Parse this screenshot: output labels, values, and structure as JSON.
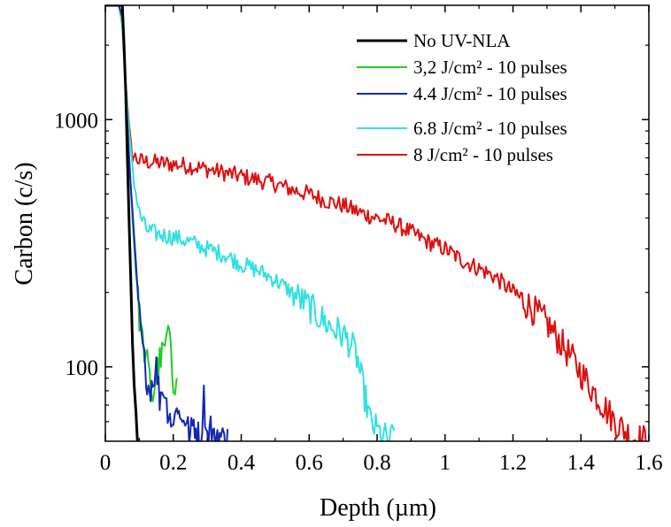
{
  "chart_data": {
    "type": "line",
    "xlabel": "Depth (µm)",
    "ylabel": "Carbon (c/s)",
    "xlim": [
      0,
      1.6
    ],
    "ylim": [
      50,
      2900
    ],
    "yscale": "log",
    "grid": false,
    "legend_position": "top-right",
    "x_ticks": [
      {
        "value": 0,
        "label": "0"
      },
      {
        "value": 0.2,
        "label": "0.2"
      },
      {
        "value": 0.4,
        "label": "0.4"
      },
      {
        "value": 0.6,
        "label": "0.6"
      },
      {
        "value": 0.8,
        "label": "0.8"
      },
      {
        "value": 1.0,
        "label": "1"
      },
      {
        "value": 1.2,
        "label": "1.2"
      },
      {
        "value": 1.4,
        "label": "1.4"
      },
      {
        "value": 1.6,
        "label": "1.6"
      }
    ],
    "y_ticks": [
      {
        "value": 100,
        "label": "100"
      },
      {
        "value": 1000,
        "label": "1000"
      }
    ],
    "series": [
      {
        "name": "No UV-NLA",
        "color": "#000000",
        "x": [
          0.0,
          0.03,
          0.04,
          0.05,
          0.055,
          0.06,
          0.065,
          0.07,
          0.075,
          0.08,
          0.085,
          0.09,
          0.095
        ],
        "y": [
          2900,
          2900,
          2900,
          2900,
          2000,
          1300,
          700,
          380,
          220,
          140,
          95,
          65,
          48
        ]
      },
      {
        "name": "3,2 J/cm² - 10 pulses",
        "color": "#22cc22",
        "x": [
          0.0,
          0.04,
          0.05,
          0.06,
          0.07,
          0.08,
          0.09,
          0.1,
          0.11,
          0.12,
          0.13,
          0.14,
          0.15,
          0.16,
          0.17,
          0.18,
          0.185,
          0.19,
          0.2,
          0.21
        ],
        "y": [
          2900,
          2900,
          2600,
          1300,
          700,
          400,
          250,
          160,
          125,
          110,
          90,
          75,
          95,
          105,
          115,
          125,
          145,
          120,
          85,
          90
        ]
      },
      {
        "name": "4.4 J/cm² - 10 pulses",
        "color": "#1428b4",
        "x": [
          0.0,
          0.04,
          0.05,
          0.06,
          0.07,
          0.08,
          0.09,
          0.1,
          0.11,
          0.12,
          0.13,
          0.14,
          0.15,
          0.16,
          0.17,
          0.18,
          0.19,
          0.2,
          0.21,
          0.22,
          0.23,
          0.24,
          0.25,
          0.26,
          0.27,
          0.28,
          0.29,
          0.3,
          0.31,
          0.32,
          0.33,
          0.34,
          0.35,
          0.36
        ],
        "y": [
          2900,
          2900,
          2600,
          1300,
          700,
          400,
          250,
          160,
          115,
          95,
          80,
          90,
          100,
          75,
          85,
          70,
          65,
          55,
          75,
          60,
          65,
          58,
          52,
          60,
          54,
          50,
          75,
          52,
          58,
          50,
          54,
          52,
          50,
          56
        ]
      },
      {
        "name": "6.8 J/cm² - 10 pulses",
        "color": "#33e0e0",
        "x": [
          0.0,
          0.04,
          0.05,
          0.06,
          0.07,
          0.08,
          0.09,
          0.1,
          0.12,
          0.15,
          0.2,
          0.25,
          0.3,
          0.35,
          0.4,
          0.45,
          0.5,
          0.55,
          0.6,
          0.65,
          0.68,
          0.7,
          0.72,
          0.74,
          0.75,
          0.76,
          0.77,
          0.78,
          0.8,
          0.82,
          0.84,
          0.85
        ],
        "y": [
          2900,
          2900,
          2400,
          1400,
          900,
          650,
          500,
          420,
          360,
          345,
          335,
          320,
          300,
          285,
          260,
          245,
          225,
          200,
          175,
          150,
          140,
          135,
          125,
          110,
          95,
          80,
          70,
          60,
          55,
          52,
          50,
          55
        ]
      },
      {
        "name": "8 J/cm² - 10 pulses",
        "color": "#dd1111",
        "x": [
          0.0,
          0.04,
          0.05,
          0.06,
          0.07,
          0.08,
          0.1,
          0.15,
          0.2,
          0.25,
          0.3,
          0.35,
          0.4,
          0.45,
          0.5,
          0.55,
          0.6,
          0.65,
          0.7,
          0.75,
          0.8,
          0.85,
          0.9,
          0.95,
          1.0,
          1.05,
          1.1,
          1.15,
          1.2,
          1.25,
          1.3,
          1.35,
          1.4,
          1.45,
          1.5,
          1.55,
          1.6
        ],
        "y": [
          2900,
          2900,
          2400,
          1400,
          950,
          720,
          680,
          670,
          660,
          650,
          630,
          610,
          590,
          570,
          550,
          520,
          500,
          470,
          450,
          420,
          400,
          380,
          350,
          320,
          300,
          270,
          250,
          230,
          200,
          175,
          150,
          120,
          95,
          75,
          60,
          52,
          50
        ]
      }
    ]
  }
}
